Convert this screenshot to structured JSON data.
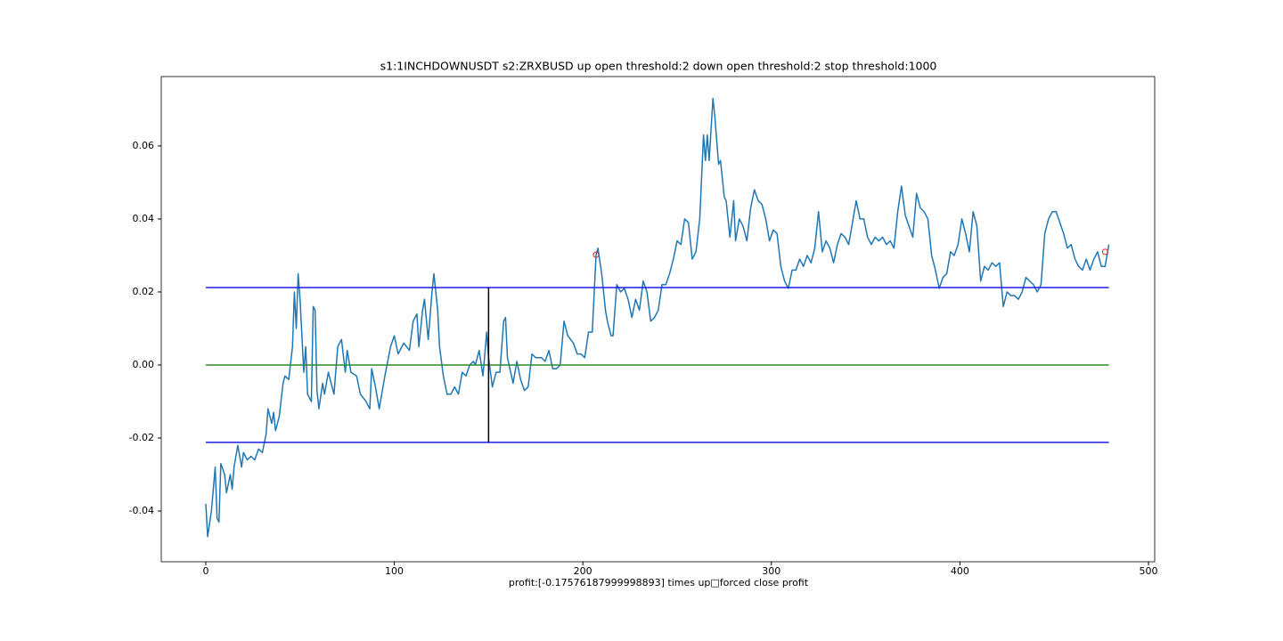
{
  "chart_data": {
    "type": "line",
    "title": "s1:1INCHDOWNUSDT s2:ZRXBUSD up open threshold:2 down open threshold:2 stop threshold:1000",
    "x_label": "profit:[-0.17576187999998893] times up□forced close profit",
    "xlim": [
      -23.6,
      503.3
    ],
    "ylim": [
      -0.0539,
      0.079
    ],
    "xticks": [
      0,
      100,
      200,
      300,
      400,
      500
    ],
    "yticks": [
      -0.04,
      -0.02,
      {
        "value": 0,
        "label": "0.00"
      },
      0.02,
      0.04,
      0.06
    ],
    "series": [
      {
        "style": "line",
        "color": "#1f77b4",
        "x": [
          0,
          1,
          3,
          5,
          6,
          7,
          8,
          10,
          11,
          13,
          14,
          15,
          17,
          19,
          20,
          22,
          24,
          26,
          28,
          30,
          32,
          33,
          35,
          36,
          37,
          39,
          41,
          42,
          44,
          46,
          47,
          48,
          49,
          50,
          52,
          53,
          54,
          56,
          57,
          58,
          59,
          60,
          62,
          63,
          65,
          67,
          68,
          70,
          72,
          74,
          75,
          77,
          80,
          82,
          85,
          87,
          88,
          90,
          92,
          95,
          98,
          100,
          102,
          105,
          108,
          110,
          112,
          113,
          115,
          116,
          118,
          120,
          121,
          123,
          124,
          126,
          128,
          130,
          132,
          134,
          136,
          138,
          140,
          142,
          143,
          145,
          147,
          149,
          150,
          152,
          154,
          156,
          158,
          159,
          160,
          163,
          165,
          167,
          169,
          171,
          173,
          175,
          178,
          180,
          182,
          184,
          186,
          188,
          190,
          192,
          195,
          197,
          199,
          201,
          203,
          205,
          207,
          208,
          210,
          212,
          213,
          215,
          216,
          218,
          220,
          222,
          224,
          226,
          228,
          230,
          232,
          234,
          236,
          238,
          240,
          242,
          244,
          246,
          248,
          250,
          252,
          254,
          256,
          258,
          260,
          262,
          264,
          265,
          266,
          267,
          269,
          270,
          272,
          273,
          275,
          276,
          278,
          280,
          281,
          283,
          285,
          287,
          289,
          291,
          293,
          295,
          297,
          299,
          301,
          303,
          305,
          307,
          309,
          311,
          313,
          315,
          317,
          319,
          321,
          323,
          325,
          327,
          329,
          331,
          333,
          335,
          337,
          339,
          341,
          343,
          345,
          347,
          349,
          351,
          353,
          355,
          357,
          359,
          361,
          363,
          365,
          367,
          369,
          371,
          373,
          375,
          377,
          379,
          381,
          383,
          385,
          387,
          389,
          391,
          393,
          395,
          397,
          399,
          401,
          403,
          405,
          407,
          409,
          411,
          413,
          415,
          417,
          419,
          421,
          423,
          425,
          427,
          429,
          431,
          433,
          435,
          437,
          439,
          441,
          443,
          445,
          447,
          449,
          451,
          453,
          455,
          457,
          459,
          461,
          463,
          465,
          467,
          469,
          471,
          473,
          475,
          477,
          479
        ],
        "values": [
          -0.038,
          -0.047,
          -0.04,
          -0.028,
          -0.042,
          -0.043,
          -0.027,
          -0.03,
          -0.035,
          -0.03,
          -0.034,
          -0.028,
          -0.022,
          -0.028,
          -0.024,
          -0.026,
          -0.025,
          -0.026,
          -0.023,
          -0.024,
          -0.019,
          -0.012,
          -0.016,
          -0.013,
          -0.018,
          -0.014,
          -0.005,
          -0.003,
          -0.004,
          0.005,
          0.02,
          0.01,
          0.025,
          0.018,
          -0.002,
          0.005,
          -0.008,
          -0.01,
          0.016,
          0.015,
          -0.007,
          -0.012,
          -0.005,
          -0.008,
          -0.002,
          -0.006,
          -0.008,
          0.005,
          0.007,
          -0.002,
          0.004,
          -0.002,
          -0.003,
          -0.008,
          -0.01,
          -0.012,
          -0.001,
          -0.006,
          -0.012,
          -0.003,
          0.005,
          0.008,
          0.003,
          0.006,
          0.004,
          0.012,
          0.014,
          0.005,
          0.015,
          0.018,
          0.007,
          0.02,
          0.025,
          0.015,
          0.005,
          -0.003,
          -0.008,
          -0.008,
          -0.006,
          -0.008,
          -0.002,
          -0.003,
          0.0,
          0.001,
          0.0,
          0.004,
          -0.003,
          0.009,
          0.002,
          -0.006,
          -0.002,
          -0.002,
          0.012,
          0.013,
          0.002,
          -0.005,
          0.001,
          -0.004,
          -0.007,
          -0.006,
          0.003,
          0.002,
          0.002,
          0.001,
          0.004,
          -0.001,
          -0.001,
          0.0,
          0.012,
          0.008,
          0.006,
          0.003,
          0.003,
          0.002,
          0.009,
          0.009,
          0.03,
          0.032,
          0.025,
          0.015,
          0.012,
          0.008,
          0.008,
          0.022,
          0.02,
          0.021,
          0.018,
          0.013,
          0.018,
          0.015,
          0.023,
          0.02,
          0.012,
          0.013,
          0.015,
          0.022,
          0.022,
          0.025,
          0.029,
          0.034,
          0.033,
          0.04,
          0.039,
          0.029,
          0.031,
          0.04,
          0.063,
          0.056,
          0.063,
          0.056,
          0.073,
          0.068,
          0.055,
          0.056,
          0.046,
          0.045,
          0.035,
          0.045,
          0.034,
          0.04,
          0.038,
          0.034,
          0.043,
          0.048,
          0.045,
          0.044,
          0.04,
          0.034,
          0.037,
          0.036,
          0.027,
          0.023,
          0.021,
          0.026,
          0.026,
          0.029,
          0.027,
          0.03,
          0.028,
          0.032,
          0.042,
          0.031,
          0.034,
          0.032,
          0.028,
          0.033,
          0.036,
          0.035,
          0.033,
          0.039,
          0.045,
          0.04,
          0.04,
          0.035,
          0.033,
          0.035,
          0.034,
          0.035,
          0.033,
          0.034,
          0.032,
          0.042,
          0.049,
          0.041,
          0.038,
          0.035,
          0.047,
          0.043,
          0.042,
          0.04,
          0.03,
          0.026,
          0.021,
          0.024,
          0.025,
          0.031,
          0.03,
          0.033,
          0.04,
          0.036,
          0.031,
          0.042,
          0.038,
          0.023,
          0.027,
          0.026,
          0.028,
          0.027,
          0.028,
          0.016,
          0.02,
          0.019,
          0.019,
          0.018,
          0.02,
          0.024,
          0.023,
          0.022,
          0.02,
          0.022,
          0.036,
          0.04,
          0.042,
          0.042,
          0.039,
          0.036,
          0.032,
          0.033,
          0.029,
          0.027,
          0.026,
          0.029,
          0.026,
          0.029,
          0.031,
          0.027,
          0.027,
          0.033
        ]
      },
      {
        "style": "line",
        "color": "#1f1fe8",
        "x": [
          0,
          479
        ],
        "values": [
          0.0212,
          0.0212
        ]
      },
      {
        "style": "line",
        "color": "#2e8b2e",
        "x": [
          0,
          479
        ],
        "values": [
          0,
          0
        ]
      },
      {
        "style": "line",
        "color": "#1f1fe8",
        "x": [
          0,
          479
        ],
        "values": [
          -0.0212,
          -0.0212
        ]
      },
      {
        "style": "line",
        "color": "#000000",
        "x": [
          150,
          150
        ],
        "values": [
          -0.0212,
          0.0212
        ]
      },
      {
        "style": "marker",
        "color": "#e02020",
        "x": [
          207,
          477
        ],
        "values": [
          0.0302,
          0.031
        ]
      }
    ]
  }
}
